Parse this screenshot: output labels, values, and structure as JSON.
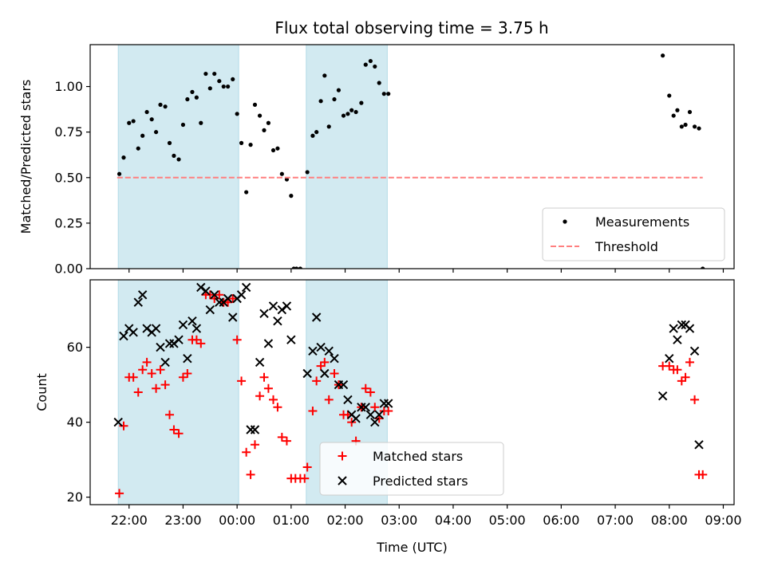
{
  "chart_data": [
    {
      "type": "scatter",
      "title": "Flux total observing time = 3.75 h",
      "ylabel": "Matched/Predicted stars",
      "xlabel": "",
      "ylim": [
        0,
        1.23
      ],
      "yticks": [
        0.0,
        0.25,
        0.5,
        0.75,
        1.0
      ],
      "ytick_labels": [
        "0.00",
        "0.25",
        "0.50",
        "0.75",
        "1.00"
      ],
      "x_unit": "hours since 00:00 UTC",
      "xlim": [
        -2.72,
        9.2
      ],
      "shaded_intervals": [
        [
          -2.2,
          0.03
        ],
        [
          1.28,
          2.78
        ]
      ],
      "shade_color": "#add8e6",
      "legend": {
        "placement": "lower right",
        "entries": [
          "Measurements",
          "Threshold"
        ]
      },
      "series": [
        {
          "name": "Measurements",
          "style": "dot",
          "color": "#000000",
          "points": [
            [
              -2.18,
              0.52
            ],
            [
              -2.1,
              0.61
            ],
            [
              -2.0,
              0.8
            ],
            [
              -1.92,
              0.81
            ],
            [
              -1.83,
              0.66
            ],
            [
              -1.75,
              0.73
            ],
            [
              -1.67,
              0.86
            ],
            [
              -1.58,
              0.82
            ],
            [
              -1.5,
              0.75
            ],
            [
              -1.42,
              0.9
            ],
            [
              -1.33,
              0.89
            ],
            [
              -1.25,
              0.69
            ],
            [
              -1.17,
              0.62
            ],
            [
              -1.08,
              0.6
            ],
            [
              -1.0,
              0.79
            ],
            [
              -0.92,
              0.93
            ],
            [
              -0.83,
              0.97
            ],
            [
              -0.75,
              0.94
            ],
            [
              -0.67,
              0.8
            ],
            [
              -0.58,
              1.07
            ],
            [
              -0.5,
              0.99
            ],
            [
              -0.42,
              1.07
            ],
            [
              -0.33,
              1.03
            ],
            [
              -0.25,
              1.0
            ],
            [
              -0.17,
              1.0
            ],
            [
              -0.08,
              1.04
            ],
            [
              0.0,
              0.85
            ],
            [
              0.08,
              0.69
            ],
            [
              0.17,
              0.42
            ],
            [
              0.25,
              0.68
            ],
            [
              0.33,
              0.9
            ],
            [
              0.42,
              0.84
            ],
            [
              0.5,
              0.76
            ],
            [
              0.58,
              0.8
            ],
            [
              0.67,
              0.65
            ],
            [
              0.75,
              0.66
            ],
            [
              0.83,
              0.52
            ],
            [
              0.92,
              0.49
            ],
            [
              1.0,
              0.4
            ],
            [
              1.05,
              0.0
            ],
            [
              1.1,
              0.0
            ],
            [
              1.17,
              0.0
            ],
            [
              1.3,
              0.53
            ],
            [
              1.4,
              0.73
            ],
            [
              1.47,
              0.75
            ],
            [
              1.55,
              0.92
            ],
            [
              1.62,
              1.06
            ],
            [
              1.7,
              0.78
            ],
            [
              1.8,
              0.93
            ],
            [
              1.88,
              0.98
            ],
            [
              1.97,
              0.84
            ],
            [
              2.05,
              0.85
            ],
            [
              2.12,
              0.87
            ],
            [
              2.2,
              0.86
            ],
            [
              2.3,
              0.91
            ],
            [
              2.38,
              1.12
            ],
            [
              2.47,
              1.14
            ],
            [
              2.55,
              1.11
            ],
            [
              2.63,
              1.02
            ],
            [
              2.72,
              0.96
            ],
            [
              2.8,
              0.96
            ],
            [
              7.88,
              1.17
            ],
            [
              8.0,
              0.95
            ],
            [
              8.08,
              0.84
            ],
            [
              8.15,
              0.87
            ],
            [
              8.23,
              0.78
            ],
            [
              8.3,
              0.79
            ],
            [
              8.38,
              0.86
            ],
            [
              8.47,
              0.78
            ],
            [
              8.55,
              0.77
            ],
            [
              8.62,
              0.0
            ]
          ]
        },
        {
          "name": "Threshold",
          "style": "dashed-line",
          "color": "#ff7f7f",
          "points": [
            [
              -2.22,
              0.5
            ],
            [
              8.62,
              0.5
            ]
          ]
        }
      ]
    },
    {
      "type": "scatter",
      "ylabel": "Count",
      "xlabel": "Time (UTC)",
      "ylim": [
        18,
        78
      ],
      "yticks": [
        20,
        40,
        60
      ],
      "ytick_labels": [
        "20",
        "40",
        "60"
      ],
      "x_unit": "hours since 00:00 UTC",
      "xlim": [
        -2.72,
        9.2
      ],
      "xticks": [
        -2,
        -1,
        0,
        1,
        2,
        3,
        4,
        5,
        6,
        7,
        8,
        9
      ],
      "xtick_labels": [
        "22:00",
        "23:00",
        "00:00",
        "01:00",
        "02:00",
        "03:00",
        "04:00",
        "05:00",
        "06:00",
        "07:00",
        "08:00",
        "09:00"
      ],
      "shaded_intervals": [
        [
          -2.2,
          0.03
        ],
        [
          1.28,
          2.78
        ]
      ],
      "shade_color": "#add8e6",
      "legend": {
        "placement": "lower center",
        "entries": [
          "Matched stars",
          "Predicted stars"
        ]
      },
      "series": [
        {
          "name": "Matched stars",
          "marker": "plus",
          "color": "#ff0000",
          "points": [
            [
              -2.18,
              21
            ],
            [
              -2.1,
              39
            ],
            [
              -2.0,
              52
            ],
            [
              -1.92,
              52
            ],
            [
              -1.83,
              48
            ],
            [
              -1.75,
              54
            ],
            [
              -1.67,
              56
            ],
            [
              -1.58,
              53
            ],
            [
              -1.5,
              49
            ],
            [
              -1.42,
              54
            ],
            [
              -1.33,
              50
            ],
            [
              -1.25,
              42
            ],
            [
              -1.17,
              38
            ],
            [
              -1.08,
              37
            ],
            [
              -1.0,
              52
            ],
            [
              -0.92,
              53
            ],
            [
              -0.83,
              62
            ],
            [
              -0.75,
              62
            ],
            [
              -0.67,
              61
            ],
            [
              -0.58,
              74
            ],
            [
              -0.5,
              74
            ],
            [
              -0.42,
              73
            ],
            [
              -0.33,
              74
            ],
            [
              -0.25,
              72
            ],
            [
              -0.17,
              72
            ],
            [
              -0.08,
              73
            ],
            [
              0.0,
              62
            ],
            [
              0.08,
              51
            ],
            [
              0.17,
              32
            ],
            [
              0.25,
              26
            ],
            [
              0.33,
              34
            ],
            [
              0.42,
              47
            ],
            [
              0.5,
              52
            ],
            [
              0.58,
              49
            ],
            [
              0.67,
              46
            ],
            [
              0.75,
              44
            ],
            [
              0.83,
              36
            ],
            [
              0.92,
              35
            ],
            [
              1.0,
              25
            ],
            [
              1.08,
              25
            ],
            [
              1.17,
              25
            ],
            [
              1.25,
              25
            ],
            [
              1.3,
              28
            ],
            [
              1.4,
              43
            ],
            [
              1.47,
              51
            ],
            [
              1.55,
              55
            ],
            [
              1.62,
              56
            ],
            [
              1.7,
              46
            ],
            [
              1.8,
              53
            ],
            [
              1.88,
              50
            ],
            [
              1.97,
              42
            ],
            [
              2.05,
              42
            ],
            [
              2.12,
              40
            ],
            [
              2.2,
              35
            ],
            [
              2.3,
              44
            ],
            [
              2.38,
              49
            ],
            [
              2.47,
              48
            ],
            [
              2.55,
              44
            ],
            [
              2.63,
              41
            ],
            [
              2.72,
              43
            ],
            [
              2.8,
              43
            ],
            [
              7.88,
              55
            ],
            [
              8.0,
              55
            ],
            [
              8.08,
              54
            ],
            [
              8.15,
              54
            ],
            [
              8.23,
              51
            ],
            [
              8.3,
              52
            ],
            [
              8.38,
              56
            ],
            [
              8.47,
              46
            ],
            [
              8.55,
              26
            ],
            [
              8.62,
              26
            ]
          ]
        },
        {
          "name": "Predicted stars",
          "marker": "x",
          "color": "#000000",
          "points": [
            [
              -2.2,
              40
            ],
            [
              -2.1,
              63
            ],
            [
              -2.0,
              65
            ],
            [
              -1.92,
              64
            ],
            [
              -1.83,
              72
            ],
            [
              -1.75,
              74
            ],
            [
              -1.67,
              65
            ],
            [
              -1.58,
              64
            ],
            [
              -1.5,
              65
            ],
            [
              -1.42,
              60
            ],
            [
              -1.33,
              56
            ],
            [
              -1.25,
              61
            ],
            [
              -1.17,
              61
            ],
            [
              -1.08,
              62
            ],
            [
              -1.0,
              66
            ],
            [
              -0.92,
              57
            ],
            [
              -0.83,
              67
            ],
            [
              -0.75,
              65
            ],
            [
              -0.67,
              76
            ],
            [
              -0.58,
              75
            ],
            [
              -0.5,
              70
            ],
            [
              -0.42,
              74
            ],
            [
              -0.33,
              72
            ],
            [
              -0.25,
              72
            ],
            [
              -0.17,
              73
            ],
            [
              -0.08,
              68
            ],
            [
              0.0,
              73
            ],
            [
              0.08,
              74
            ],
            [
              0.17,
              76
            ],
            [
              0.25,
              38
            ],
            [
              0.33,
              38
            ],
            [
              0.42,
              56
            ],
            [
              0.5,
              69
            ],
            [
              0.58,
              61
            ],
            [
              0.67,
              71
            ],
            [
              0.75,
              67
            ],
            [
              0.83,
              70
            ],
            [
              0.92,
              71
            ],
            [
              1.0,
              62
            ],
            [
              1.3,
              53
            ],
            [
              1.4,
              59
            ],
            [
              1.47,
              68
            ],
            [
              1.55,
              60
            ],
            [
              1.62,
              53
            ],
            [
              1.7,
              59
            ],
            [
              1.8,
              57
            ],
            [
              1.88,
              50
            ],
            [
              1.97,
              50
            ],
            [
              2.05,
              46
            ],
            [
              2.12,
              42
            ],
            [
              2.2,
              41
            ],
            [
              2.3,
              44
            ],
            [
              2.38,
              44
            ],
            [
              2.47,
              42
            ],
            [
              2.55,
              40
            ],
            [
              2.63,
              42
            ],
            [
              2.72,
              45
            ],
            [
              2.8,
              45
            ],
            [
              7.88,
              47
            ],
            [
              8.0,
              57
            ],
            [
              8.08,
              65
            ],
            [
              8.15,
              62
            ],
            [
              8.23,
              66
            ],
            [
              8.3,
              66
            ],
            [
              8.38,
              65
            ],
            [
              8.47,
              59
            ],
            [
              8.55,
              34
            ]
          ]
        }
      ]
    }
  ]
}
